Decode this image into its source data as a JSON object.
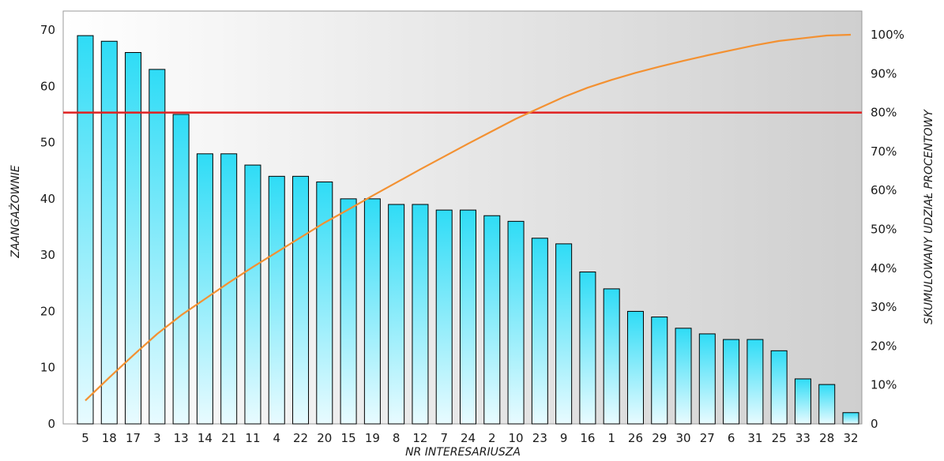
{
  "chart_data": {
    "type": "bar",
    "title": "",
    "xlabel": "NR INTERESARIUSZA",
    "ylabel": "ZAANGAŻOWNIE",
    "y2label": "SKUMULOWANY UDZIAŁ PROCENTOWY",
    "ylim": [
      0,
      70
    ],
    "y2lim": [
      0,
      100
    ],
    "yticks": [
      "0",
      "10",
      "20",
      "30",
      "40",
      "50",
      "60",
      "70"
    ],
    "y2ticks": [
      "0",
      "10%",
      "20%",
      "30%",
      "40%",
      "50%",
      "60%",
      "70%",
      "80%",
      "90%",
      "100%"
    ],
    "grid": false,
    "legend": "none",
    "categories": [
      "5",
      "18",
      "17",
      "3",
      "13",
      "14",
      "21",
      "11",
      "4",
      "22",
      "20",
      "15",
      "19",
      "8",
      "12",
      "7",
      "24",
      "2",
      "10",
      "23",
      "9",
      "16",
      "1",
      "26",
      "29",
      "30",
      "27",
      "6",
      "31",
      "25",
      "33",
      "28",
      "32"
    ],
    "values": [
      69,
      68,
      66,
      63,
      55,
      48,
      48,
      46,
      44,
      44,
      43,
      40,
      40,
      39,
      39,
      38,
      38,
      37,
      36,
      33,
      32,
      27,
      24,
      20,
      19,
      17,
      16,
      15,
      15,
      13,
      8,
      7,
      2
    ],
    "cumulative_percent": [
      6.0,
      11.9,
      17.6,
      23.1,
      27.9,
      32.1,
      36.3,
      40.3,
      44.1,
      47.9,
      51.7,
      55.1,
      58.6,
      62.0,
      65.4,
      68.7,
      72.0,
      75.2,
      78.4,
      81.2,
      84.0,
      86.4,
      88.4,
      90.2,
      91.8,
      93.3,
      94.7,
      96.0,
      97.3,
      98.4,
      99.1,
      99.8,
      100.0
    ],
    "threshold_percent": 80,
    "colors": {
      "bar_top": "#2fdcf6",
      "bar_bottom": "#e8fbff",
      "bar_edge": "#000000",
      "cumulative_line": "#f39132",
      "threshold_line": "#e02020",
      "plot_bg_left": "#ffffff",
      "plot_bg_right": "#cfcfcf"
    }
  }
}
